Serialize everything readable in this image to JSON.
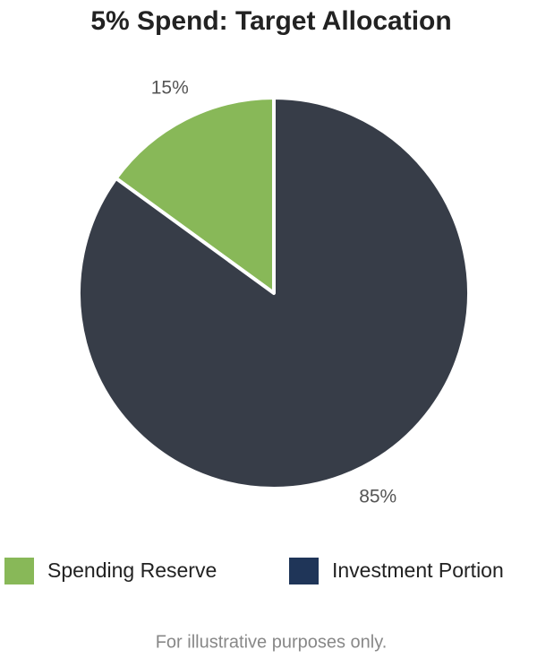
{
  "chart_data": {
    "type": "pie",
    "title": "5% Spend: Target Allocation",
    "categories": [
      "Spending Reserve",
      "Investment Portion"
    ],
    "values": [
      15,
      85
    ],
    "value_labels": [
      "15%",
      "85%"
    ],
    "colors": [
      "#88b858",
      "#373d48"
    ],
    "legend_colors": [
      "#88b858",
      "#1f3558"
    ],
    "note": "For illustrative purposes only."
  }
}
